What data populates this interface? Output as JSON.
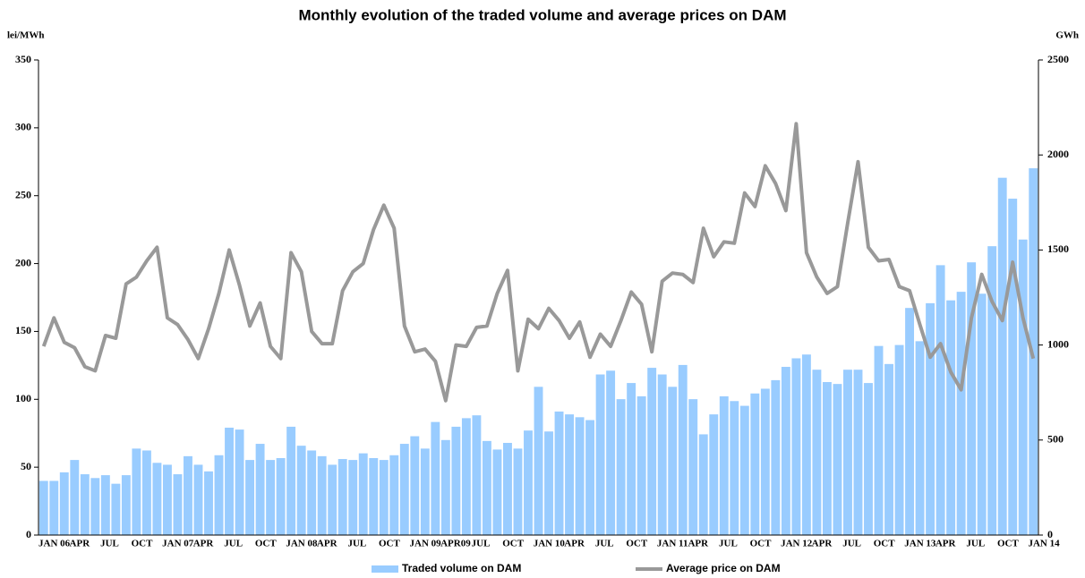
{
  "chart_data": {
    "type": "bar-line",
    "title": "Monthly evolution of the traded volume and average prices on DAM",
    "y_label": "lei/MWh",
    "y2_label": "GWh",
    "categories": [
      "JAN 06",
      null,
      null,
      "APR",
      null,
      null,
      "JUL",
      null,
      null,
      "OCT",
      null,
      null,
      "JAN 07",
      null,
      null,
      "APR",
      null,
      null,
      "JUL",
      null,
      null,
      "OCT",
      null,
      null,
      "JAN 08",
      null,
      null,
      "APR",
      null,
      null,
      "JUL",
      null,
      null,
      "OCT",
      null,
      null,
      "JAN 09",
      null,
      null,
      "APR09",
      null,
      null,
      "JUL",
      null,
      null,
      "OCT",
      null,
      null,
      "JAN 10",
      null,
      null,
      "APR",
      null,
      null,
      "JUL",
      null,
      null,
      "OCT",
      null,
      null,
      "JAN 11",
      null,
      null,
      "APR",
      null,
      null,
      "JUL",
      null,
      null,
      "OCT",
      null,
      null,
      "JAN 12",
      null,
      null,
      "APR",
      null,
      null,
      "JUL",
      null,
      null,
      "OCT",
      null,
      null,
      "JAN 13",
      null,
      null,
      "APR",
      null,
      null,
      "JUL",
      null,
      null,
      "OCT",
      null,
      null,
      "JAN 14"
    ],
    "series": [
      {
        "name": "Traded volume on DAM",
        "type": "bar",
        "axis": "y2",
        "color": "#99ccff",
        "values": [
          285,
          285,
          330,
          395,
          320,
          300,
          315,
          270,
          315,
          455,
          445,
          380,
          370,
          320,
          415,
          370,
          335,
          420,
          565,
          555,
          395,
          480,
          395,
          405,
          570,
          470,
          445,
          415,
          370,
          400,
          395,
          430,
          405,
          395,
          420,
          480,
          520,
          455,
          595,
          500,
          570,
          615,
          630,
          495,
          450,
          485,
          455,
          550,
          780,
          545,
          650,
          635,
          620,
          605,
          845,
          865,
          715,
          800,
          730,
          880,
          845,
          780,
          895,
          715,
          530,
          635,
          730,
          705,
          680,
          745,
          770,
          815,
          885,
          930,
          950,
          870,
          805,
          795,
          870,
          870,
          800,
          995,
          900,
          1000,
          1195,
          1020,
          1220,
          1420,
          1235,
          1280,
          1435,
          1270,
          1520,
          1880,
          1770,
          1555,
          1930
        ]
      },
      {
        "name": "Average price on DAM",
        "type": "line",
        "color": "#999999",
        "values": [
          139,
          160,
          142,
          138,
          124,
          121,
          147,
          145,
          185,
          190,
          202,
          212,
          160,
          155,
          144,
          130,
          152,
          178,
          210,
          184,
          154,
          171,
          139,
          130,
          208,
          194,
          150,
          141,
          141,
          180,
          194,
          200,
          225,
          243,
          226,
          154,
          135,
          137,
          128,
          99,
          140,
          139,
          153,
          154,
          178,
          195,
          121,
          159,
          152,
          167,
          158,
          145,
          157,
          131,
          148,
          139,
          158,
          179,
          170,
          135,
          187,
          193,
          192,
          186,
          226,
          205,
          216,
          215,
          252,
          242,
          272,
          259,
          239,
          303,
          208,
          190,
          178,
          183,
          230,
          275,
          212,
          202,
          203,
          183,
          180,
          155,
          131,
          141,
          120,
          107,
          160,
          192,
          172,
          158,
          201,
          160,
          130
        ]
      }
    ],
    "ylim": [
      0,
      350
    ],
    "yticks": [
      0,
      50,
      100,
      150,
      200,
      250,
      300,
      350
    ],
    "y2lim": [
      0,
      2500
    ],
    "y2ticks": [
      0,
      500,
      1000,
      1500,
      2000,
      2500
    ],
    "grid": false,
    "legend": "bottom"
  }
}
